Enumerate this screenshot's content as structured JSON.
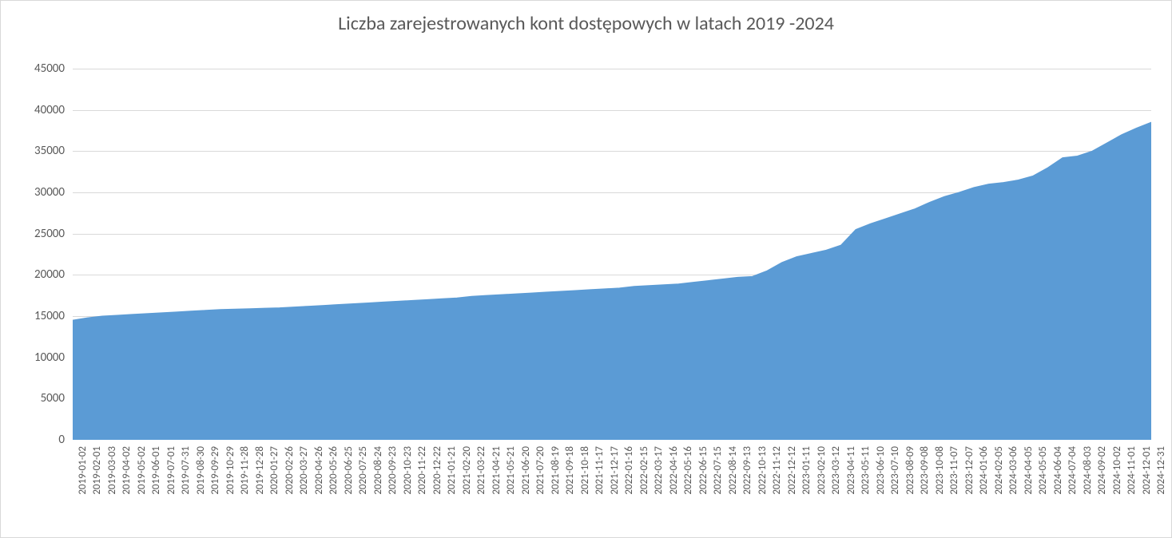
{
  "chart": {
    "type": "area",
    "title": "Liczba zarejestrowanych kont dostępowych w latach 2019 -2024",
    "title_fontsize": 24,
    "title_color": "#595959",
    "background_color": "#ffffff",
    "border_color": "#d9d9d9",
    "grid_color": "#d9d9d9",
    "area_fill_color": "#5b9bd5",
    "area_line_color": "#5b9bd5",
    "tick_label_color": "#595959",
    "ytick_fontsize": 15,
    "xtick_fontsize": 13,
    "ylim": [
      0,
      45000
    ],
    "ytick_step": 5000,
    "yticks": [
      0,
      5000,
      10000,
      15000,
      20000,
      25000,
      30000,
      35000,
      40000,
      45000
    ],
    "categories": [
      "2019-01-02",
      "2019-02-01",
      "2019-03-03",
      "2019-04-02",
      "2019-05-02",
      "2019-06-01",
      "2019-07-01",
      "2019-07-31",
      "2019-08-30",
      "2019-09-29",
      "2019-10-29",
      "2019-11-28",
      "2019-12-28",
      "2020-01-27",
      "2020-02-26",
      "2020-03-27",
      "2020-04-26",
      "2020-05-26",
      "2020-06-25",
      "2020-07-25",
      "2020-08-24",
      "2020-09-23",
      "2020-10-23",
      "2020-11-22",
      "2020-12-22",
      "2021-01-21",
      "2021-02-20",
      "2021-03-22",
      "2021-04-21",
      "2021-05-21",
      "2021-06-20",
      "2021-07-20",
      "2021-08-19",
      "2021-09-18",
      "2021-10-18",
      "2021-11-17",
      "2021-12-17",
      "2022-01-16",
      "2022-02-15",
      "2022-03-17",
      "2022-04-16",
      "2022-05-16",
      "2022-06-15",
      "2022-07-15",
      "2022-08-14",
      "2022-09-13",
      "2022-10-13",
      "2022-11-12",
      "2022-12-12",
      "2023-01-11",
      "2023-02-10",
      "2023-03-12",
      "2023-04-11",
      "2023-05-11",
      "2023-06-10",
      "2023-07-10",
      "2023-08-09",
      "2023-09-08",
      "2023-10-08",
      "2023-11-07",
      "2023-12-07",
      "2024-01-06",
      "2024-02-05",
      "2024-03-06",
      "2024-04-05",
      "2024-05-05",
      "2024-06-04",
      "2024-07-04",
      "2024-08-03",
      "2024-09-02",
      "2024-10-02",
      "2024-11-01",
      "2024-12-01",
      "2024-12-31"
    ],
    "values": [
      14500,
      14800,
      15000,
      15100,
      15200,
      15300,
      15400,
      15500,
      15600,
      15700,
      15800,
      15850,
      15900,
      15950,
      16000,
      16100,
      16200,
      16300,
      16400,
      16500,
      16600,
      16700,
      16800,
      16900,
      17000,
      17100,
      17200,
      17400,
      17500,
      17600,
      17700,
      17800,
      17900,
      18000,
      18100,
      18200,
      18300,
      18400,
      18600,
      18700,
      18800,
      18900,
      19100,
      19300,
      19500,
      19700,
      19800,
      20500,
      21500,
      22200,
      22600,
      23000,
      23600,
      25500,
      26200,
      26800,
      27400,
      28000,
      28800,
      29500,
      30000,
      30600,
      31000,
      31200,
      31500,
      32000,
      33000,
      34200,
      34400,
      35000,
      36000,
      37000,
      37800,
      38500
    ]
  }
}
